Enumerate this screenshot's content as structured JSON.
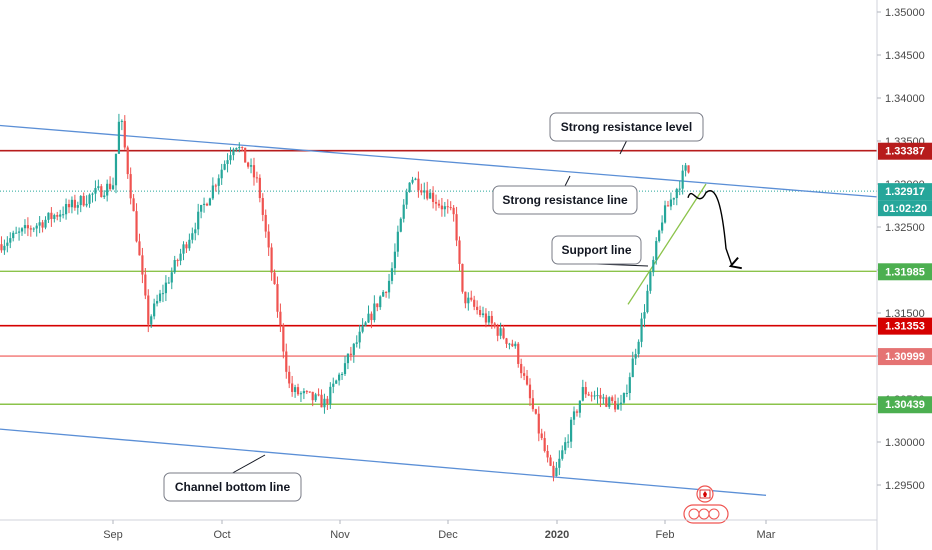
{
  "chart_data": {
    "type": "candlestick",
    "title": "",
    "xlabel": "",
    "ylabel": "",
    "ylim": [
      1.2915,
      1.3522
    ],
    "y_ticks": [
      "1.35000",
      "1.34500",
      "1.34000",
      "1.33500",
      "1.33000",
      "1.32500",
      "1.32000",
      "1.31500",
      "1.31000",
      "1.30500",
      "1.30000",
      "1.29500"
    ],
    "x_ticks": [
      {
        "label": "Sep",
        "bold": false
      },
      {
        "label": "Oct",
        "bold": false
      },
      {
        "label": "Nov",
        "bold": false
      },
      {
        "label": "Dec",
        "bold": false
      },
      {
        "label": "2020",
        "bold": true
      },
      {
        "label": "Feb",
        "bold": false
      },
      {
        "label": "Mar",
        "bold": false
      }
    ],
    "grid": false,
    "colors": {
      "up": "#26a69a",
      "down": "#ef5350",
      "trend": "#5b8fd6",
      "resistance": "#b71c1c",
      "support": "#8bc34a",
      "minor": "#ef5350"
    },
    "horizontal_levels": [
      {
        "value": 1.33387,
        "label": "1.33387",
        "role": "resistance",
        "badge_color": "#b71c1c"
      },
      {
        "value": 1.32917,
        "label": "1.32917",
        "role": "current-price",
        "badge_color": "#26a69a"
      },
      {
        "value": 1.31985,
        "label": "1.31985",
        "role": "support",
        "badge_color": "#4caf50"
      },
      {
        "value": 1.31353,
        "label": "1.31353",
        "role": "resistance",
        "badge_color": "#d50000"
      },
      {
        "value": 1.30999,
        "label": "1.30999",
        "role": "minor",
        "badge_color": "#e57373"
      },
      {
        "value": 1.30439,
        "label": "1.30439",
        "role": "support",
        "badge_color": "#4caf50"
      }
    ],
    "countdown": "01:02:20",
    "annotations": [
      {
        "text": "Strong resistance level"
      },
      {
        "text": "Strong resistance line"
      },
      {
        "text": "Support line"
      },
      {
        "text": "Channel bottom line"
      }
    ],
    "key_points": [
      {
        "date": "Aug",
        "close": 1.323
      },
      {
        "date": "Sep",
        "close": 1.33
      },
      {
        "date": "Sep",
        "high": 1.3383
      },
      {
        "date": "Sep",
        "low": 1.314
      },
      {
        "date": "Oct",
        "high": 1.335
      },
      {
        "date": "Oct",
        "close": 1.33
      },
      {
        "date": "Oct",
        "low": 1.306
      },
      {
        "date": "Nov",
        "low": 1.3045
      },
      {
        "date": "Nov",
        "high": 1.319
      },
      {
        "date": "Dec",
        "high": 1.331
      },
      {
        "date": "Dec",
        "close": 1.326
      },
      {
        "date": "Dec",
        "close": 1.317
      },
      {
        "date": "Dec",
        "low": 1.311
      },
      {
        "date": "2020",
        "low": 1.2955
      },
      {
        "date": "2020",
        "close": 1.306
      },
      {
        "date": "2020",
        "close": 1.304
      },
      {
        "date": "Feb",
        "close": 1.313
      },
      {
        "date": "Feb",
        "close": 1.326
      },
      {
        "date": "Feb",
        "high": 1.3322
      },
      {
        "date": "Feb",
        "close": 1.32917
      }
    ]
  }
}
